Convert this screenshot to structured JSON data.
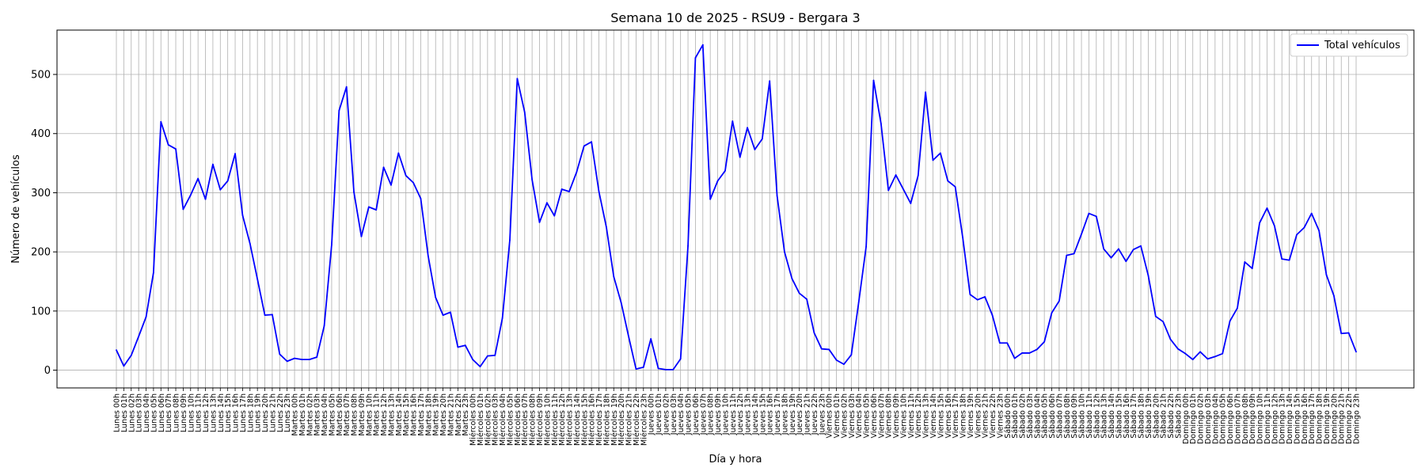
{
  "chart_data": {
    "type": "line",
    "title": "Semana 10 de 2025 - RSU9 - Bergara 3",
    "xlabel": "Día y hora",
    "ylabel": "Número de vehículos",
    "ylim": [
      -30,
      575
    ],
    "yticks": [
      0,
      100,
      200,
      300,
      400,
      500
    ],
    "grid": true,
    "legend_position": "top-right",
    "line_color": "#0000ff",
    "categories": [
      "Lunes 00h",
      "Lunes 01h",
      "Lunes 02h",
      "Lunes 03h",
      "Lunes 04h",
      "Lunes 05h",
      "Lunes 06h",
      "Lunes 07h",
      "Lunes 08h",
      "Lunes 09h",
      "Lunes 10h",
      "Lunes 11h",
      "Lunes 12h",
      "Lunes 13h",
      "Lunes 14h",
      "Lunes 15h",
      "Lunes 16h",
      "Lunes 17h",
      "Lunes 18h",
      "Lunes 19h",
      "Lunes 20h",
      "Lunes 21h",
      "Lunes 22h",
      "Lunes 23h",
      "Martes 00h",
      "Martes 01h",
      "Martes 02h",
      "Martes 03h",
      "Martes 04h",
      "Martes 05h",
      "Martes 06h",
      "Martes 07h",
      "Martes 08h",
      "Martes 09h",
      "Martes 10h",
      "Martes 11h",
      "Martes 12h",
      "Martes 13h",
      "Martes 14h",
      "Martes 15h",
      "Martes 16h",
      "Martes 17h",
      "Martes 18h",
      "Martes 19h",
      "Martes 20h",
      "Martes 21h",
      "Martes 22h",
      "Martes 23h",
      "Miércoles 00h",
      "Miércoles 01h",
      "Miércoles 02h",
      "Miércoles 03h",
      "Miércoles 04h",
      "Miércoles 05h",
      "Miércoles 06h",
      "Miércoles 07h",
      "Miércoles 08h",
      "Miércoles 09h",
      "Miércoles 10h",
      "Miércoles 11h",
      "Miércoles 12h",
      "Miércoles 13h",
      "Miércoles 14h",
      "Miércoles 15h",
      "Miércoles 16h",
      "Miércoles 17h",
      "Miércoles 18h",
      "Miércoles 19h",
      "Miércoles 20h",
      "Miércoles 21h",
      "Miércoles 22h",
      "Miércoles 23h",
      "Jueves 00h",
      "Jueves 01h",
      "Jueves 02h",
      "Jueves 03h",
      "Jueves 04h",
      "Jueves 05h",
      "Jueves 06h",
      "Jueves 07h",
      "Jueves 08h",
      "Jueves 09h",
      "Jueves 10h",
      "Jueves 11h",
      "Jueves 12h",
      "Jueves 13h",
      "Jueves 14h",
      "Jueves 15h",
      "Jueves 16h",
      "Jueves 17h",
      "Jueves 18h",
      "Jueves 19h",
      "Jueves 20h",
      "Jueves 21h",
      "Jueves 22h",
      "Jueves 23h",
      "Viernes 00h",
      "Viernes 01h",
      "Viernes 02h",
      "Viernes 03h",
      "Viernes 04h",
      "Viernes 05h",
      "Viernes 06h",
      "Viernes 07h",
      "Viernes 08h",
      "Viernes 09h",
      "Viernes 10h",
      "Viernes 11h",
      "Viernes 12h",
      "Viernes 13h",
      "Viernes 14h",
      "Viernes 15h",
      "Viernes 16h",
      "Viernes 17h",
      "Viernes 18h",
      "Viernes 19h",
      "Viernes 20h",
      "Viernes 21h",
      "Viernes 22h",
      "Viernes 23h",
      "Sábado 00h",
      "Sábado 01h",
      "Sábado 02h",
      "Sábado 03h",
      "Sábado 04h",
      "Sábado 05h",
      "Sábado 06h",
      "Sábado 07h",
      "Sábado 08h",
      "Sábado 09h",
      "Sábado 10h",
      "Sábado 11h",
      "Sábado 12h",
      "Sábado 13h",
      "Sábado 14h",
      "Sábado 15h",
      "Sábado 16h",
      "Sábado 17h",
      "Sábado 18h",
      "Sábado 19h",
      "Sábado 20h",
      "Sábado 21h",
      "Sábado 22h",
      "Sábado 23h",
      "Domingo 00h",
      "Domingo 01h",
      "Domingo 02h",
      "Domingo 03h",
      "Domingo 04h",
      "Domingo 05h",
      "Domingo 06h",
      "Domingo 07h",
      "Domingo 08h",
      "Domingo 09h",
      "Domingo 10h",
      "Domingo 11h",
      "Domingo 12h",
      "Domingo 13h",
      "Domingo 14h",
      "Domingo 15h",
      "Domingo 16h",
      "Domingo 17h",
      "Domingo 18h",
      "Domingo 19h",
      "Domingo 20h",
      "Domingo 21h",
      "Domingo 22h",
      "Domingo 23h"
    ],
    "series": [
      {
        "name": "Total vehículos",
        "values": [
          34,
          7,
          25,
          57,
          90,
          165,
          420,
          381,
          374,
          272,
          296,
          324,
          289,
          348,
          305,
          320,
          366,
          262,
          214,
          154,
          93,
          94,
          27,
          15,
          20,
          18,
          18,
          22,
          75,
          212,
          439,
          479,
          301,
          226,
          276,
          271,
          343,
          313,
          367,
          329,
          317,
          290,
          193,
          123,
          93,
          98,
          39,
          42,
          18,
          6,
          24,
          25,
          88,
          220,
          493,
          436,
          322,
          250,
          283,
          261,
          306,
          302,
          335,
          379,
          386,
          302,
          242,
          158,
          114,
          57,
          2,
          5,
          53,
          3,
          1,
          1,
          19,
          210,
          528,
          550,
          289,
          320,
          337,
          421,
          360,
          410,
          373,
          391,
          489,
          295,
          200,
          155,
          130,
          120,
          63,
          36,
          35,
          17,
          10,
          26,
          115,
          209,
          490,
          417,
          304,
          330,
          306,
          282,
          329,
          470,
          355,
          367,
          320,
          310,
          225,
          128,
          119,
          124,
          93,
          46,
          46,
          20,
          29,
          29,
          35,
          48,
          97,
          117,
          194,
          197,
          230,
          265,
          260,
          205,
          190,
          205,
          184,
          204,
          210,
          160,
          91,
          82,
          52,
          36,
          28,
          18,
          31,
          19,
          23,
          28,
          83,
          105,
          183,
          172,
          249,
          274,
          244,
          188,
          186,
          229,
          241,
          265,
          236,
          161,
          126,
          62,
          63,
          31
        ]
      }
    ]
  }
}
